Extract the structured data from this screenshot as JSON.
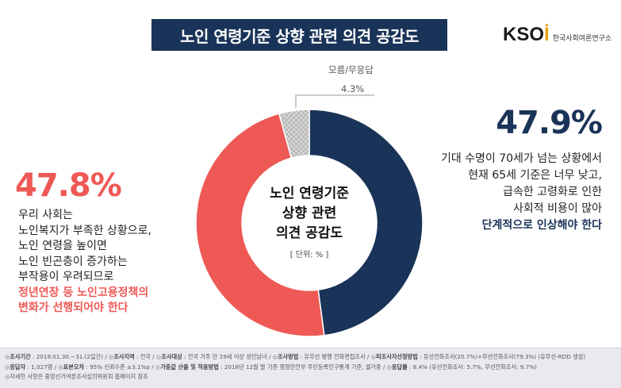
{
  "header": {
    "title": "노인 연령기준 상향 관련 의견 공감도",
    "logo_text": "KSOI",
    "logo_subtitle": "한국사회여론연구소"
  },
  "colors": {
    "raise": "#1a3358",
    "oppose": "#ee5955",
    "unknown": "#c8c8c8",
    "footer_bg": "#e8eaef"
  },
  "chart_data": {
    "type": "pie",
    "style": "donut",
    "title": "노인 연령기준 상향 관련 의견 공감도",
    "unit": "[ 단위: % ]",
    "slices": [
      {
        "label": "단계적으로 인상해야 한다",
        "value": 47.9,
        "display": "47.9%",
        "color": "#1a3358"
      },
      {
        "label": "정년연장 등 노인고용정책의 변화가 선행되어야 한다",
        "value": 47.8,
        "display": "47.8%",
        "color": "#ee5955"
      },
      {
        "label": "모름/무응답",
        "value": 4.3,
        "display": "4.3%",
        "color": "#c8c8c8"
      }
    ]
  },
  "annotations": {
    "center_line1": "노인 연령기준",
    "center_line2": "상향 관련",
    "center_line3": "의견 공감도",
    "center_unit": "[ 단위: % ]",
    "other_name": "모름/무응답",
    "other_value": "4.3%",
    "right_pct": "47.9%",
    "right_lines": [
      "기대 수명이 70세가 넘는 상황에서",
      "현재 65세 기준은 너무 낮고,",
      "급속한 고령화로 인한",
      "사회적 비용이 많아"
    ],
    "right_emphasis": "단계적으로 인상해야 한다",
    "left_pct": "47.8%",
    "left_lines": [
      "우리 사회는",
      "노인복지가 부족한 상황으로,",
      "노인 연령을 높이면",
      "노인 빈곤층이 증가하는",
      "부작용이 우려되므로"
    ],
    "left_emphasis": [
      "정년연장 등 노인고용정책의",
      "변화가 선행되어야 한다"
    ]
  },
  "footer": {
    "line1": [
      {
        "label": "조사기간",
        "value": "2019.01.30.~31.(2일간)"
      },
      {
        "label": "조사지역",
        "value": "전국"
      },
      {
        "label": "조사대상",
        "value": "전국 거주 만 19세 이상 성인남녀"
      },
      {
        "label": "조사방법",
        "value": "유무선 병행 전화면접조사"
      },
      {
        "label": "피조사자선정방법",
        "value": "유선전화조사(20.7%)+무선전화조사(79.3%) (유무선-RDD 생성)"
      }
    ],
    "line2": [
      {
        "label": "응답자",
        "value": "1,027명"
      },
      {
        "label": "표본오차",
        "value": "95% 신뢰수준 ±3.1%p"
      },
      {
        "label": "가중값 산출 및 적용방법",
        "value": "2018년 12월 말 기준 행정안전부 주민등록인구통계 기준, 셀가중"
      },
      {
        "label": "응답률",
        "value": "8.4% (유선전화조사: 5.7%, 무선전화조사: 9.7%)"
      }
    ],
    "line3": "자세한 사항은 중앙선거여론조사심의위원회 홈페이지 참조"
  }
}
